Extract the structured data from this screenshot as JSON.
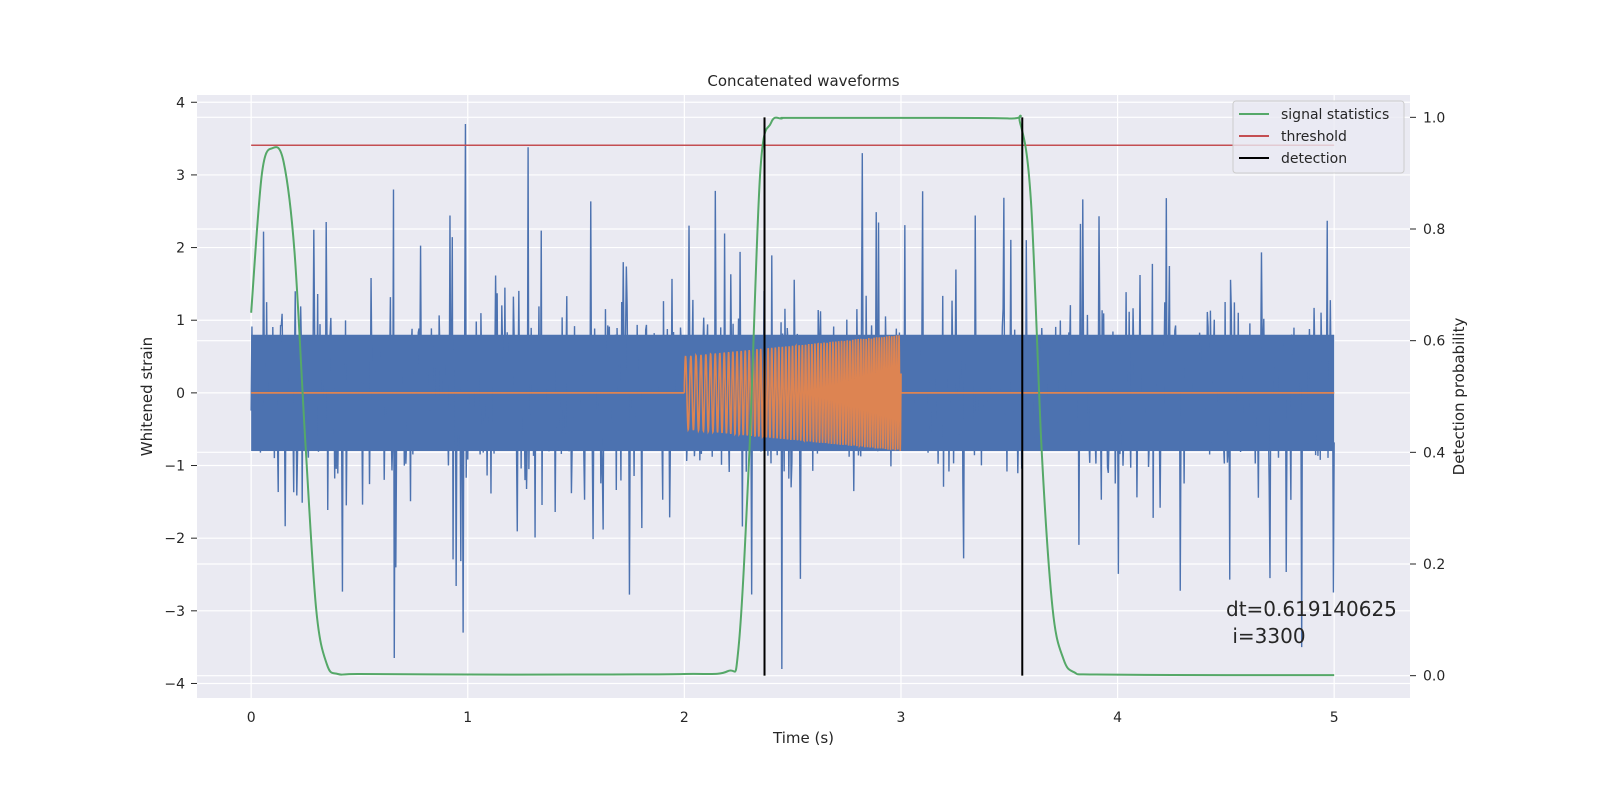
{
  "chart_data": {
    "type": "line",
    "title": "Concatenated waveforms",
    "xlabel": "Time (s)",
    "ylabel": "Whitened strain",
    "y2label": "Detection probability",
    "xlim": [
      -0.25,
      5.35
    ],
    "ylim": [
      -4.2,
      4.1
    ],
    "y2lim": [
      -0.04,
      1.04
    ],
    "xticks": [
      "0",
      "1",
      "2",
      "3",
      "4",
      "5"
    ],
    "yticks": [
      "−4",
      "−3",
      "−2",
      "−1",
      "0",
      "1",
      "2",
      "3",
      "4"
    ],
    "y2ticks": [
      "0.0",
      "0.2",
      "0.4",
      "0.6",
      "0.8",
      "1.0"
    ],
    "grid": true,
    "legend_position": "top-right",
    "colors": {
      "background": "#eaeaf2",
      "grid": "#ffffff",
      "strain": "#4c72b0",
      "injection": "#dd8452",
      "signal_statistics": "#55a868",
      "threshold": "#c44e52",
      "detection": "#000000"
    },
    "series": [
      {
        "name": "",
        "axis": "left",
        "kind": "noise",
        "x_range": [
          0,
          5
        ],
        "core_amplitude": 0.8,
        "spike_max": 3.7,
        "spikes": [
          [
            0.99,
            3.7
          ],
          [
            1.28,
            3.38
          ],
          [
            2.82,
            3.3
          ],
          [
            4.85,
            -3.5
          ],
          [
            0.66,
            -3.65
          ],
          [
            2.45,
            -3.8
          ],
          [
            0.98,
            -3.3
          ]
        ]
      },
      {
        "name": "",
        "axis": "left",
        "kind": "chirp",
        "x": [
          0,
          2,
          3,
          5
        ],
        "envelope": [
          0,
          0.5,
          0.8,
          0
        ],
        "active_range": [
          2,
          3
        ]
      },
      {
        "name": "signal statistics",
        "axis": "right",
        "x": [
          0,
          0.05,
          0.1,
          0.15,
          0.2,
          0.25,
          0.3,
          0.35,
          0.4,
          0.5,
          1.0,
          1.5,
          2.0,
          2.2,
          2.25,
          2.3,
          2.35,
          2.4,
          2.45,
          2.5,
          3.0,
          3.5,
          3.55,
          3.6,
          3.65,
          3.7,
          3.75,
          3.8,
          3.9,
          4.5,
          5.0
        ],
        "y": [
          0.65,
          0.9,
          0.945,
          0.92,
          0.76,
          0.42,
          0.12,
          0.02,
          0.003,
          0.003,
          0.002,
          0.002,
          0.003,
          0.008,
          0.05,
          0.4,
          0.9,
          0.99,
          0.998,
          0.999,
          0.999,
          0.998,
          0.99,
          0.85,
          0.4,
          0.12,
          0.03,
          0.006,
          0.002,
          0.001,
          0.001
        ]
      },
      {
        "name": "threshold",
        "axis": "right",
        "x": [
          0,
          5
        ],
        "y": [
          0.95,
          0.95
        ]
      },
      {
        "name": "detection",
        "axis": "right",
        "kind": "vlines",
        "x": [
          2.37,
          3.56
        ],
        "y_range": [
          0.0,
          1.0
        ]
      }
    ],
    "legend": [
      "signal statistics",
      "threshold",
      "detection"
    ],
    "annotation": {
      "line1": "dt=0.619140625",
      "line2": " i=3300"
    }
  }
}
